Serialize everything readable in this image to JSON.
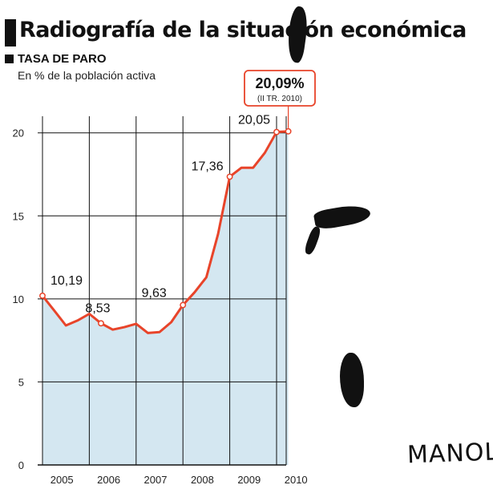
{
  "header": {
    "title": "Radiografía de la situación económica",
    "subtitle": "TASA DE PARO",
    "unit_label": "En % de la población activa"
  },
  "signature": "MANOLO",
  "colors": {
    "line": "#e8442a",
    "fill": "#cfe4ef",
    "grid": "#111111",
    "callout_border": "#e8442a"
  },
  "chart_data": {
    "type": "area",
    "title": "TASA DE PARO",
    "ylabel": "En % de la población activa",
    "ylim": [
      0,
      21
    ],
    "yticks": [
      "0",
      "5",
      "10",
      "15",
      "20"
    ],
    "xticks": [
      "2005",
      "2006",
      "2007",
      "2008",
      "2009",
      "2010"
    ],
    "grid": true,
    "series": [
      {
        "values": [
          {
            "q": "2005-I",
            "y": 10.19
          },
          {
            "q": "2005-II",
            "y": 9.3
          },
          {
            "q": "2005-III",
            "y": 8.4
          },
          {
            "q": "2005-IV",
            "y": 8.7
          },
          {
            "q": "2006-I",
            "y": 9.1
          },
          {
            "q": "2006-II",
            "y": 8.53
          },
          {
            "q": "2006-III",
            "y": 8.15
          },
          {
            "q": "2006-IV",
            "y": 8.3
          },
          {
            "q": "2007-I",
            "y": 8.5
          },
          {
            "q": "2007-II",
            "y": 7.95
          },
          {
            "q": "2007-III",
            "y": 8.0
          },
          {
            "q": "2007-IV",
            "y": 8.6
          },
          {
            "q": "2008-I",
            "y": 9.63
          },
          {
            "q": "2008-II",
            "y": 10.4
          },
          {
            "q": "2008-III",
            "y": 11.3
          },
          {
            "q": "2008-IV",
            "y": 13.9
          },
          {
            "q": "2009-I",
            "y": 17.36
          },
          {
            "q": "2009-II",
            "y": 17.9
          },
          {
            "q": "2009-III",
            "y": 17.9
          },
          {
            "q": "2009-IV",
            "y": 18.8
          },
          {
            "q": "2010-I",
            "y": 20.05
          },
          {
            "q": "2010-II",
            "y": 20.09
          }
        ]
      }
    ],
    "data_labels": [
      {
        "q": "2005-I",
        "text": "10,19"
      },
      {
        "q": "2006-II",
        "text": "8,53"
      },
      {
        "q": "2008-I",
        "text": "9,63"
      },
      {
        "q": "2009-I",
        "text": "17,36"
      },
      {
        "q": "2010-I",
        "text": "20,05"
      }
    ],
    "callout": {
      "q": "2010-II",
      "value": "20,09%",
      "note": "(II TR. 2010)"
    }
  }
}
